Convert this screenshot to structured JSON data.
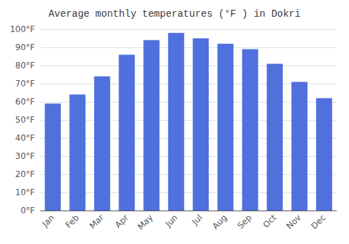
{
  "chart_data": {
    "type": "bar",
    "title": "Average monthly temperatures (°F ) in Dokri",
    "categories": [
      "Jan",
      "Feb",
      "Mar",
      "Apr",
      "May",
      "Jun",
      "Jul",
      "Aug",
      "Sep",
      "Oct",
      "Nov",
      "Dec"
    ],
    "values": [
      59,
      64,
      74,
      86,
      94,
      98,
      95,
      92,
      89,
      81,
      71,
      62
    ],
    "ylim": [
      0,
      100
    ],
    "yticks": [
      {
        "value": 0,
        "label": "0°F"
      },
      {
        "value": 10,
        "label": "10°F"
      },
      {
        "value": 20,
        "label": "20°F"
      },
      {
        "value": 30,
        "label": "30°F"
      },
      {
        "value": 40,
        "label": "40°F"
      },
      {
        "value": 50,
        "label": "50°F"
      },
      {
        "value": 60,
        "label": "60°F"
      },
      {
        "value": 70,
        "label": "70°F"
      },
      {
        "value": 80,
        "label": "80°F"
      },
      {
        "value": 90,
        "label": "90°F"
      },
      {
        "value": 100,
        "label": "100°F"
      }
    ],
    "grid": true
  }
}
